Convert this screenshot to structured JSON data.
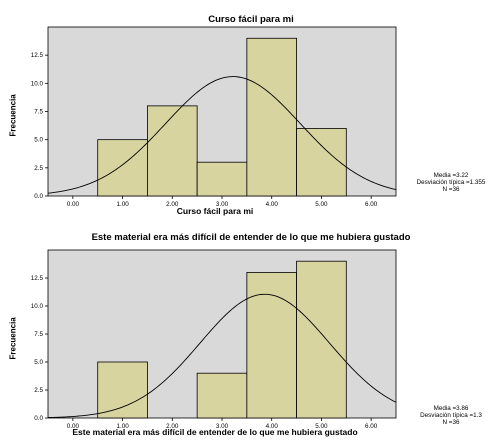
{
  "chart_data": [
    {
      "type": "bar",
      "title": "Curso fácil para mi",
      "xlabel": "Curso fácil para mi",
      "ylabel": "Frecuencia",
      "x_ticks": [
        "0.00",
        "1.00",
        "2.00",
        "3.00",
        "4.00",
        "5.00",
        "6.00"
      ],
      "y_ticks": [
        "0.0",
        "2.5",
        "5.0",
        "7.5",
        "10.0",
        "12.5"
      ],
      "xlim": [
        -0.5,
        6.5
      ],
      "ylim": [
        0,
        15
      ],
      "bins": [
        {
          "x": 1,
          "value": 5
        },
        {
          "x": 2,
          "value": 8
        },
        {
          "x": 3,
          "value": 3
        },
        {
          "x": 4,
          "value": 14
        },
        {
          "x": 5,
          "value": 6
        }
      ],
      "normal_curve": {
        "mean": 3.22,
        "sd": 1.355,
        "n": 36
      },
      "stats_lines": [
        "Media =3.22",
        "Desviación típica =1.355",
        "N =36"
      ],
      "colors": {
        "bar": "#d8d4a0",
        "plot_bg": "#d9d9d9",
        "border": "#000000"
      }
    },
    {
      "type": "bar",
      "title": "Este material era más difícil de entender de lo que me hubiera gustado",
      "xlabel": "Este material era más difícil de entender de lo que me hubiera gustado",
      "ylabel": "Frecuencia",
      "x_ticks": [
        "0.00",
        "1.00",
        "2.00",
        "3.00",
        "4.00",
        "5.00",
        "6.00"
      ],
      "y_ticks": [
        "0.0",
        "2.5",
        "5.0",
        "7.5",
        "10.0",
        "12.5"
      ],
      "xlim": [
        -0.5,
        6.5
      ],
      "ylim": [
        0,
        15
      ],
      "bins": [
        {
          "x": 1,
          "value": 5
        },
        {
          "x": 3,
          "value": 4
        },
        {
          "x": 4,
          "value": 13
        },
        {
          "x": 5,
          "value": 14
        }
      ],
      "normal_curve": {
        "mean": 3.86,
        "sd": 1.3,
        "n": 36
      },
      "stats_lines": [
        "Media =3.86",
        "Desviación típica =1.3",
        "N =36"
      ],
      "colors": {
        "bar": "#d8d4a0",
        "plot_bg": "#d9d9d9",
        "border": "#000000"
      }
    }
  ]
}
